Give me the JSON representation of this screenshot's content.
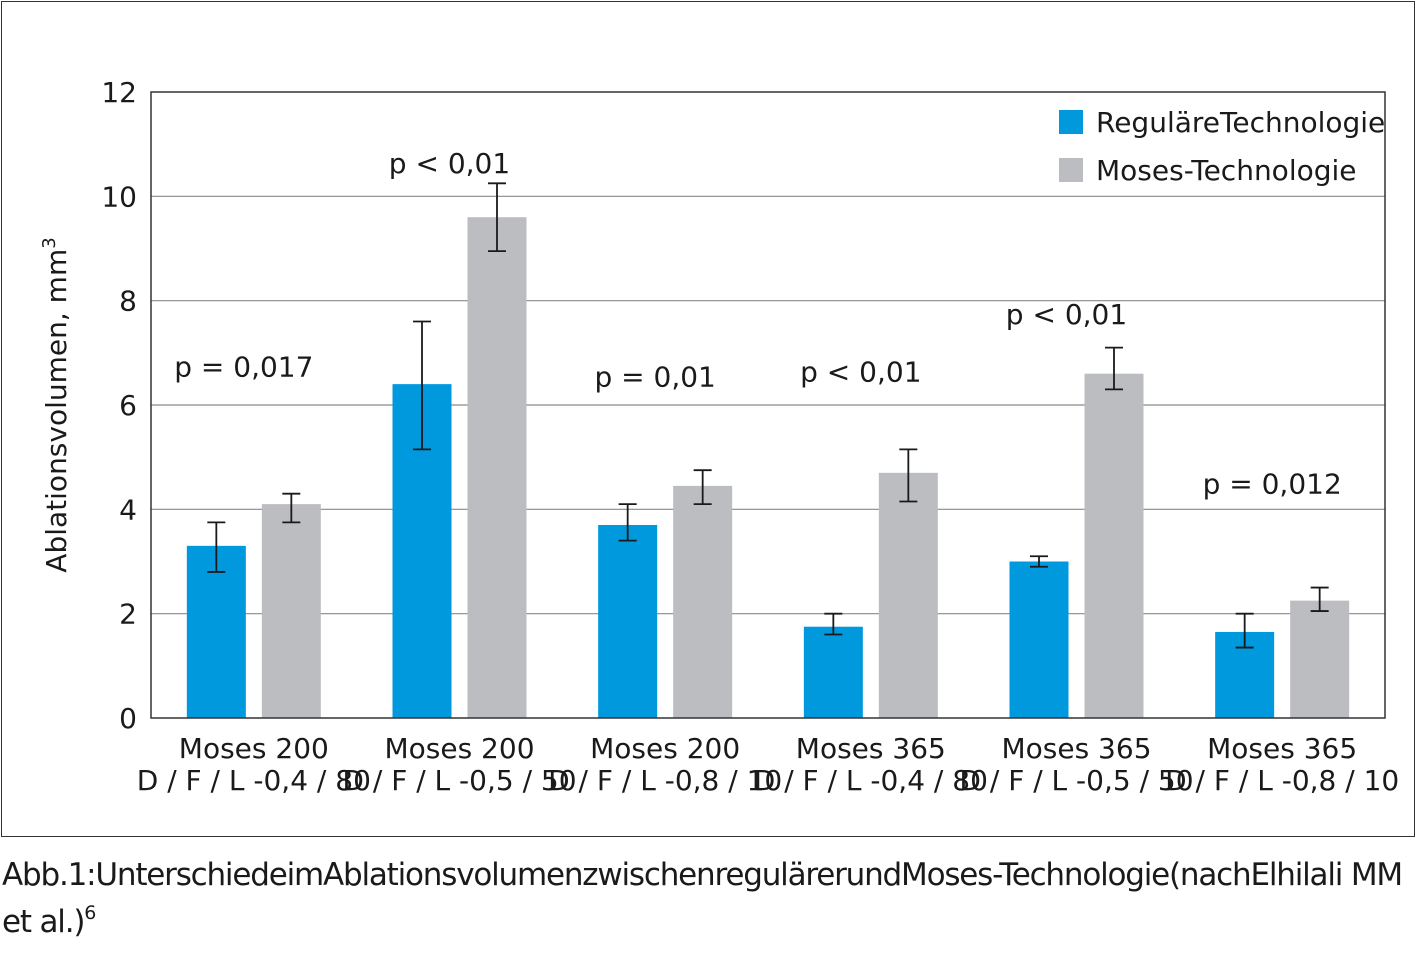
{
  "chart_data": {
    "type": "bar",
    "title": "",
    "ylabel": "Ablationsvolumen, mm",
    "ylabel_sup": "3",
    "xlabel": "",
    "ylim": [
      0,
      12
    ],
    "yticks": [
      0,
      2,
      4,
      6,
      8,
      10,
      12
    ],
    "grid": true,
    "legend_position": "top-right",
    "categories": [
      {
        "line1": "Moses 200",
        "line2": "D / F / L -0,4 / 80"
      },
      {
        "line1": "Moses 200",
        "line2": "D / F / L -0,5 / 50"
      },
      {
        "line1": "Moses 200",
        "line2": "D / F / L -0,8 / 10"
      },
      {
        "line1": "Moses 365",
        "line2": "D / F / L -0,4 / 80"
      },
      {
        "line1": "Moses 365",
        "line2": "D / F / L -0,5 / 50"
      },
      {
        "line1": "Moses 365",
        "line2": "D / F / L -0,8 / 10"
      }
    ],
    "series": [
      {
        "name": "ReguläreTechnologie",
        "color": "#0099dd",
        "values": [
          3.3,
          6.4,
          3.7,
          1.75,
          3.0,
          1.65
        ],
        "err_low": [
          2.8,
          5.15,
          3.4,
          1.6,
          2.9,
          1.35
        ],
        "err_high": [
          3.75,
          7.6,
          4.1,
          2.0,
          3.1,
          2.0
        ]
      },
      {
        "name": "Moses-Technologie",
        "color": "#bcbdc0",
        "values": [
          4.1,
          9.6,
          4.45,
          4.7,
          6.6,
          2.25
        ],
        "err_low": [
          3.75,
          8.95,
          4.1,
          4.15,
          6.3,
          2.05
        ],
        "err_high": [
          4.3,
          10.25,
          4.75,
          5.15,
          7.1,
          2.5
        ]
      }
    ],
    "annotations": [
      "p = 0,017",
      "p < 0,01",
      "p = 0,01",
      "p < 0,01",
      "p < 0,01",
      "p = 0,012"
    ],
    "annotation_y": [
      6.55,
      10.45,
      6.35,
      6.45,
      7.55,
      4.3
    ]
  },
  "caption": {
    "text": "Abb.1:UnterschiedeimAblationsvolumenzwischenregulärerundMoses-Technologie(nachElhilali MM et al.)",
    "sup": "6"
  }
}
